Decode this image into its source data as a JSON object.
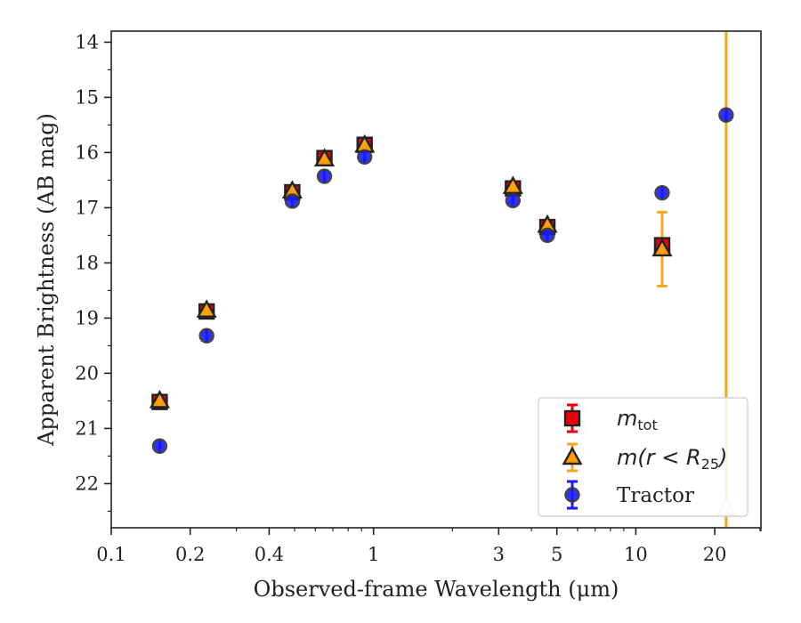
{
  "chart_data": {
    "type": "scatter",
    "xlabel": "Observed-frame Wavelength (μm)",
    "ylabel": "Apparent Brightness (AB mag)",
    "xscale": "log",
    "xlim": [
      0.1,
      30
    ],
    "ylim": [
      22.8,
      13.8
    ],
    "y_inverted": true,
    "x_ticks": [
      0.1,
      0.2,
      0.4,
      1,
      3,
      5,
      10,
      20
    ],
    "x_tick_labels": [
      "0.1",
      "0.2",
      "0.4",
      "1",
      "3",
      "5",
      "10",
      "20"
    ],
    "y_ticks": [
      14,
      15,
      16,
      17,
      18,
      19,
      20,
      21,
      22
    ],
    "y_tick_labels": [
      "14",
      "15",
      "16",
      "17",
      "18",
      "19",
      "20",
      "21",
      "22"
    ],
    "legend_position": "lower-right",
    "series": [
      {
        "name": "m_tot",
        "legend_main": "m",
        "legend_sub": "tot",
        "marker": "square",
        "color": "#e8000b",
        "edge_color": "#222222",
        "points": [
          {
            "x": 0.153,
            "y": 20.52,
            "err": 0.05
          },
          {
            "x": 0.231,
            "y": 18.88,
            "err": 0.04
          },
          {
            "x": 0.49,
            "y": 16.72,
            "err": 0.03
          },
          {
            "x": 0.65,
            "y": 16.1,
            "err": 0.03
          },
          {
            "x": 0.925,
            "y": 15.86,
            "err": 0.03
          },
          {
            "x": 3.4,
            "y": 16.65,
            "err": 0.03
          },
          {
            "x": 4.6,
            "y": 17.35,
            "err": 0.04
          },
          {
            "x": 12.6,
            "y": 17.68,
            "err": 0.08
          }
        ]
      },
      {
        "name": "m(r<R_25)",
        "legend_main": "m(r < R",
        "legend_sub": "25",
        "legend_close": ")",
        "marker": "triangle",
        "color": "#ff9d00",
        "edge_color": "#222222",
        "points": [
          {
            "x": 0.153,
            "y": 20.5,
            "err": 0.05
          },
          {
            "x": 0.231,
            "y": 18.86,
            "err": 0.04
          },
          {
            "x": 0.49,
            "y": 16.7,
            "err": 0.03
          },
          {
            "x": 0.65,
            "y": 16.12,
            "err": 0.03
          },
          {
            "x": 0.925,
            "y": 15.87,
            "err": 0.03
          },
          {
            "x": 3.4,
            "y": 16.62,
            "err": 0.03
          },
          {
            "x": 4.6,
            "y": 17.32,
            "err": 0.04
          },
          {
            "x": 12.6,
            "y": 17.75,
            "err": 0.67
          },
          {
            "x": 22.1,
            "y": 22.45,
            "err": 11.0,
            "faded": true
          }
        ]
      },
      {
        "name": "Tractor",
        "marker": "circle",
        "color": "#1a1aff",
        "edge_color": "#333333",
        "points": [
          {
            "x": 0.153,
            "y": 21.32,
            "err": 0.05
          },
          {
            "x": 0.231,
            "y": 19.32,
            "err": 0.04
          },
          {
            "x": 0.49,
            "y": 16.88,
            "err": 0.03
          },
          {
            "x": 0.65,
            "y": 16.43,
            "err": 0.03
          },
          {
            "x": 0.925,
            "y": 16.08,
            "err": 0.03
          },
          {
            "x": 3.4,
            "y": 16.87,
            "err": 0.03
          },
          {
            "x": 4.6,
            "y": 17.5,
            "err": 0.04
          },
          {
            "x": 12.6,
            "y": 16.73,
            "err": 0.04
          },
          {
            "x": 22.1,
            "y": 15.32,
            "err": 0.04
          }
        ]
      }
    ]
  }
}
